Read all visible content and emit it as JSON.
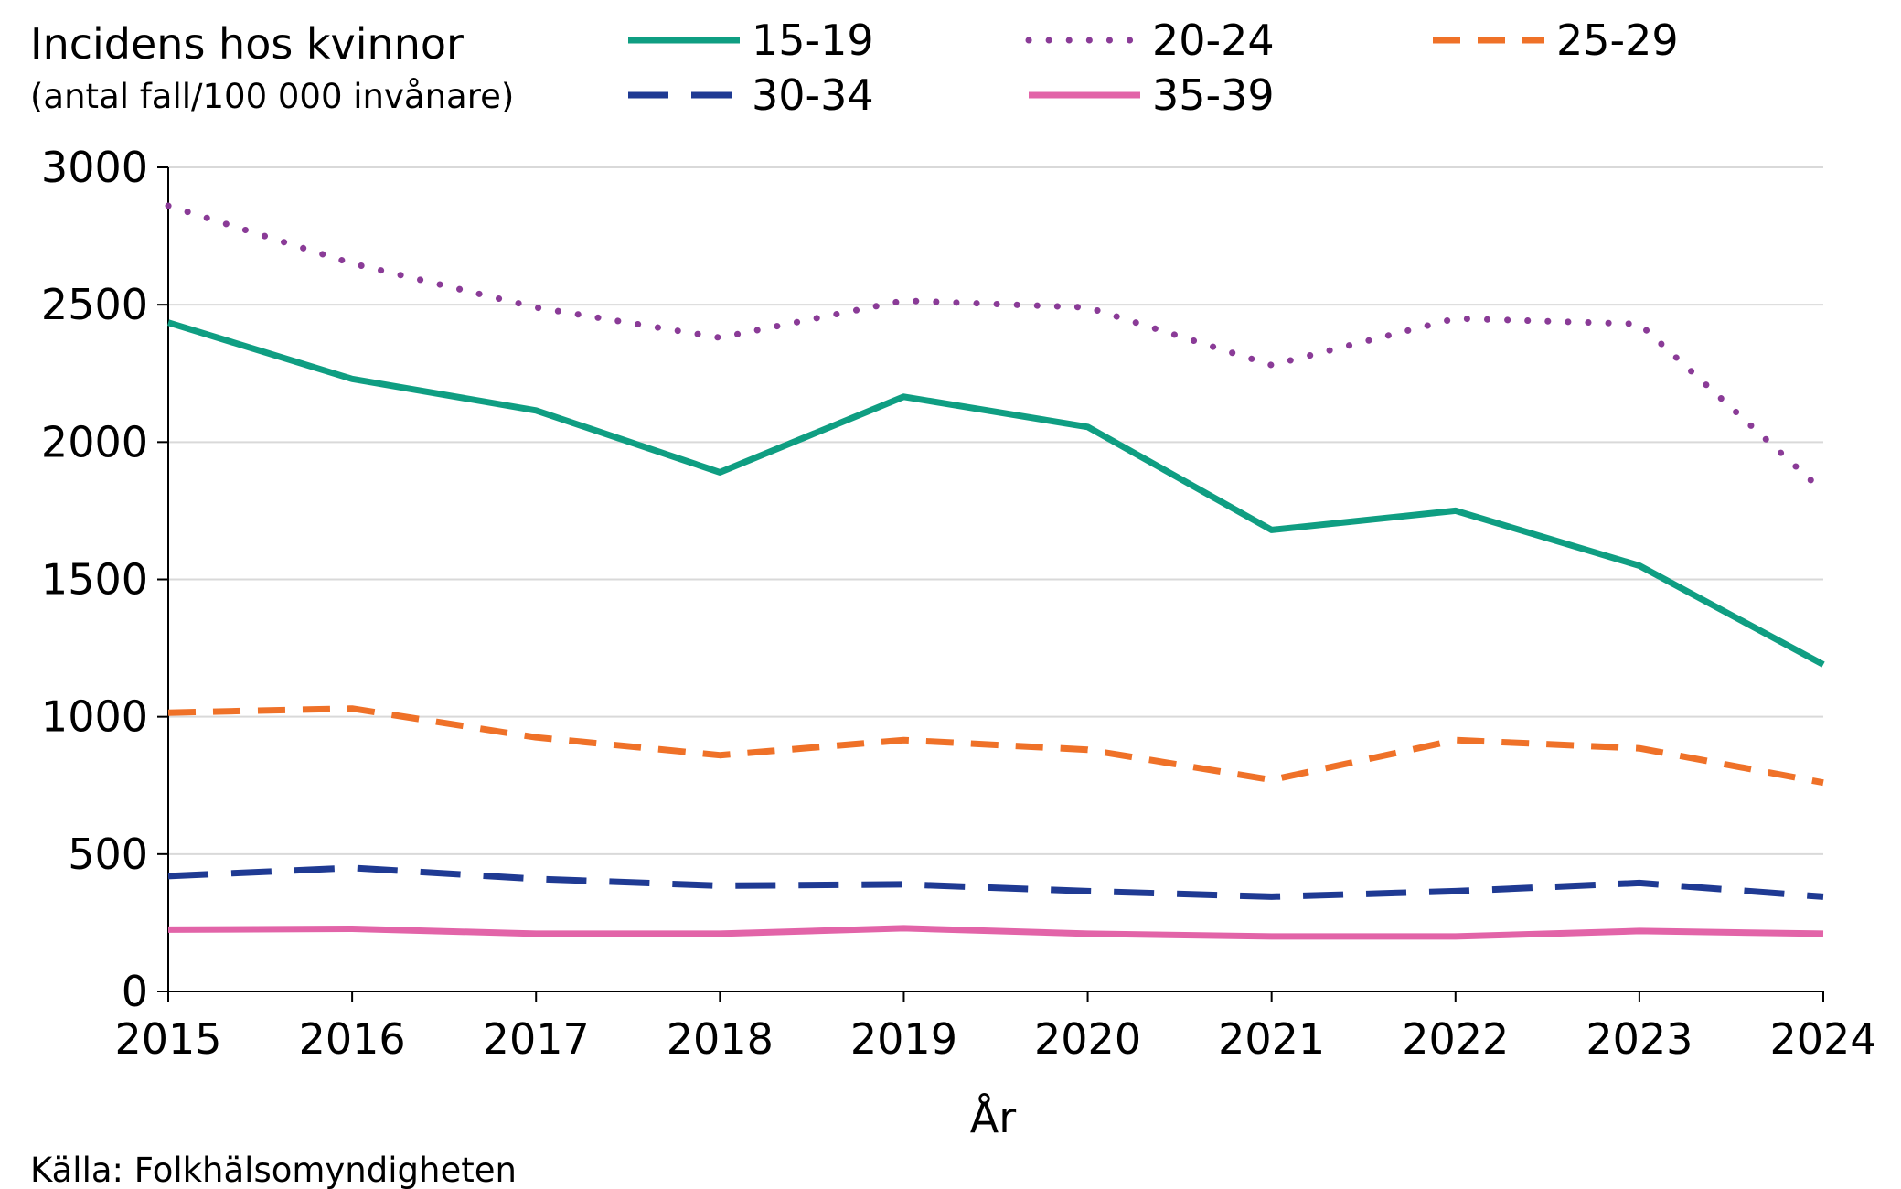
{
  "chart_data": {
    "type": "line",
    "title": "Incidens hos kvinnor",
    "subtitle": "(antal fall/100 000 invånare)",
    "xlabel": "År",
    "ylabel": "",
    "source": "Källa: Folkhälsomyndigheten",
    "x": [
      2015,
      2016,
      2017,
      2018,
      2019,
      2020,
      2021,
      2022,
      2023,
      2024
    ],
    "x_tick_labels": [
      "2015",
      "2016",
      "2017",
      "2018",
      "2019",
      "2020",
      "2021",
      "2022",
      "2023",
      "2024"
    ],
    "ylim": [
      0,
      3000
    ],
    "y_ticks": [
      0,
      500,
      1000,
      1500,
      2000,
      2500,
      3000
    ],
    "y_tick_labels": [
      "0",
      "500",
      "1000",
      "1500",
      "2000",
      "2500",
      "3000"
    ],
    "grid": true,
    "legend_position": "top",
    "series": [
      {
        "name": "15-19",
        "style": "solid",
        "color": "#0f9e82",
        "values": [
          2435,
          2230,
          2115,
          1890,
          2165,
          2055,
          1680,
          1750,
          1550,
          1190
        ]
      },
      {
        "name": "20-24",
        "style": "dotted",
        "color": "#8a3b97",
        "values": [
          2860,
          2650,
          2490,
          2380,
          2515,
          2490,
          2280,
          2450,
          2430,
          1820
        ]
      },
      {
        "name": "25-29",
        "style": "dashed",
        "color": "#ef7128",
        "values": [
          1015,
          1030,
          925,
          860,
          915,
          880,
          770,
          915,
          885,
          760
        ]
      },
      {
        "name": "30-34",
        "style": "long-dash",
        "color": "#1f3a93",
        "values": [
          420,
          450,
          410,
          385,
          390,
          365,
          345,
          365,
          395,
          345
        ]
      },
      {
        "name": "35-39",
        "style": "solid",
        "color": "#e264a8",
        "values": [
          225,
          228,
          210,
          210,
          230,
          210,
          200,
          200,
          220,
          210
        ]
      }
    ]
  }
}
